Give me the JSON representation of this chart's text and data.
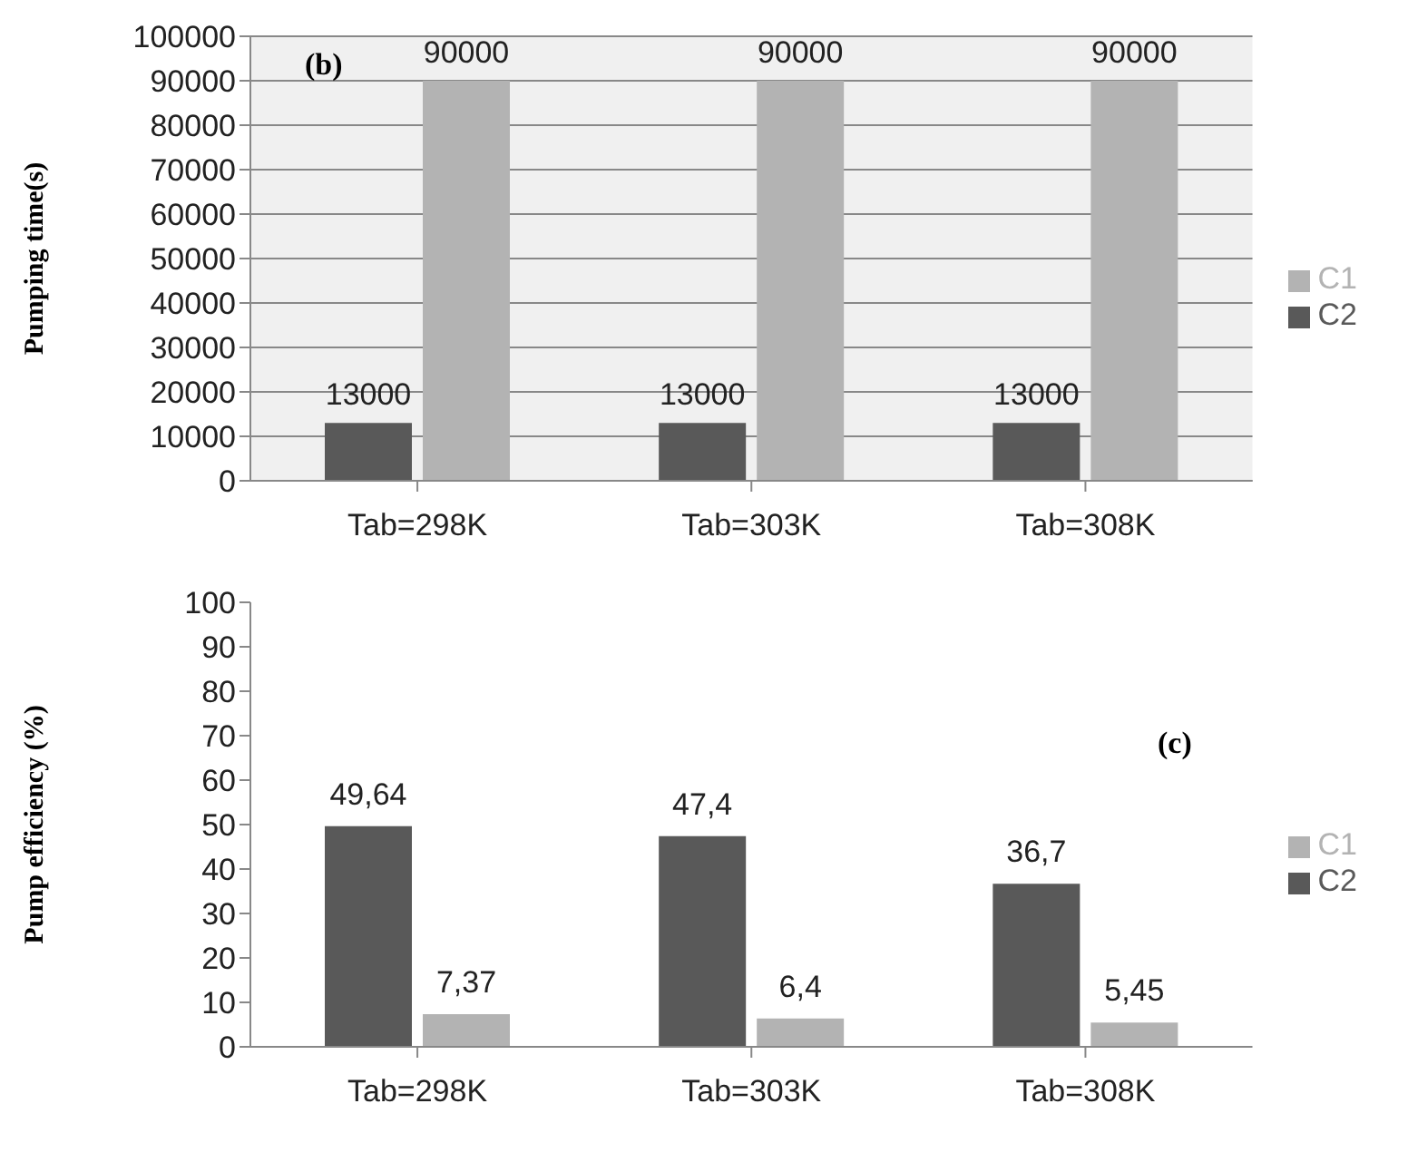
{
  "chart_data": [
    {
      "type": "bar",
      "ylabel": "Pumping time(s)",
      "categories": [
        "Tab=298K",
        "Tab=303K",
        "Tab=308K"
      ],
      "series": [
        {
          "name": "C2",
          "color": "#595959",
          "values": [
            13000,
            13000,
            13000
          ]
        },
        {
          "name": "C1",
          "color": "#b3b3b3",
          "values": [
            90000,
            90000,
            90000
          ]
        }
      ],
      "ylim": [
        0,
        100000
      ],
      "yticks": [
        0,
        10000,
        20000,
        30000,
        40000,
        50000,
        60000,
        70000,
        80000,
        90000,
        100000
      ],
      "grid": "y",
      "legend": "right",
      "data_labels": true,
      "annotations": [
        "(b)"
      ]
    },
    {
      "type": "bar",
      "ylabel": "Pump efficiency (%)",
      "categories": [
        "Tab=298K",
        "Tab=303K",
        "Tab=308K"
      ],
      "series": [
        {
          "name": "C2",
          "color": "#595959",
          "values": [
            49.64,
            47.4,
            36.7
          ],
          "value_labels": [
            "49,64",
            "47,4",
            "36,7"
          ]
        },
        {
          "name": "C1",
          "color": "#b3b3b3",
          "values": [
            7.37,
            6.4,
            5.45
          ],
          "value_labels": [
            "7,37",
            "6,4",
            "5,45"
          ]
        }
      ],
      "ylim": [
        0,
        100
      ],
      "yticks": [
        0,
        10,
        20,
        30,
        40,
        50,
        60,
        70,
        80,
        90,
        100
      ],
      "legend": "right",
      "annotations": [
        "(c)"
      ]
    }
  ]
}
